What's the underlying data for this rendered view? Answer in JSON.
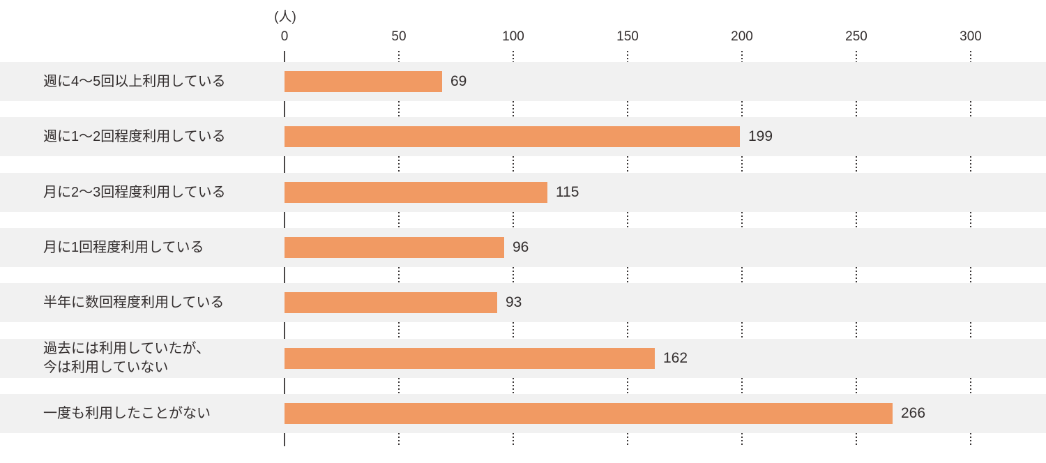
{
  "chart_data": {
    "type": "bar",
    "orientation": "horizontal",
    "title": "",
    "unit_label": "(人)",
    "categories": [
      "週に4〜5回以上利用している",
      "週に1〜2回程度利用している",
      "月に2〜3回程度利用している",
      "月に1回程度利用している",
      "半年に数回程度利用している",
      "過去には利用していたが、\n今は利用していない",
      "一度も利用したことがない"
    ],
    "values": [
      69,
      199,
      115,
      96,
      93,
      162,
      266
    ],
    "x_ticks": [
      0,
      50,
      100,
      150,
      200,
      250,
      300
    ],
    "xlim": [
      0,
      333
    ],
    "value_labels_shown": true,
    "grid": "dotted-vertical-in-row-gaps",
    "legend": "none",
    "colors": {
      "bar": "#F19A63",
      "row_stripe": "#F1F1F1",
      "axis_line": "#4a4747",
      "grid_dot": "#3a3636",
      "text": "#332e2e"
    }
  }
}
